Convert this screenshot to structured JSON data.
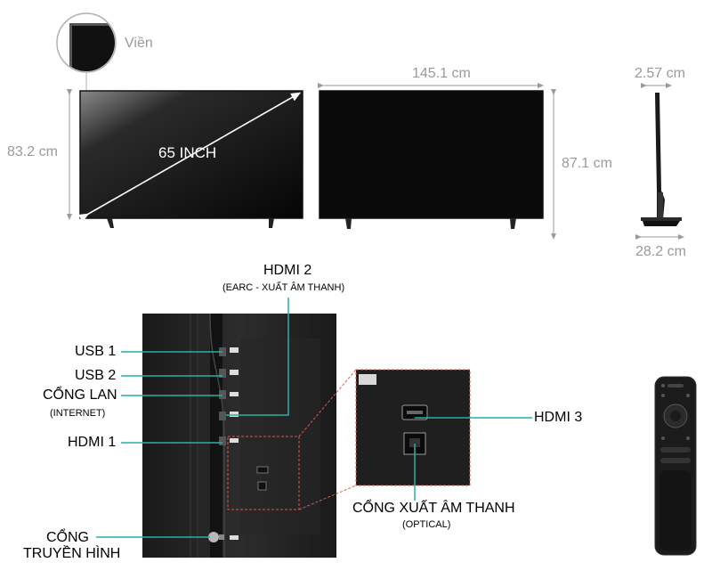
{
  "dimensions": {
    "bezel_label": "Viền",
    "screen_size": "65 INCH",
    "width": "145.1 cm",
    "height_no_stand": "83.2 cm",
    "height_with_stand": "87.1 cm",
    "depth": "2.57 cm",
    "stand_depth": "28.2 cm"
  },
  "ports": {
    "hdmi2": "HDMI 2",
    "hdmi2_sub": "(EARC - XUẤT ÂM THANH)",
    "usb1": "USB 1",
    "usb2": "USB 2",
    "lan": "CỔNG LAN",
    "lan_sub": "(INTERNET)",
    "hdmi1": "HDMI 1",
    "antenna_line1": "CỔNG",
    "antenna_line2": "TRUYỀN HÌNH",
    "hdmi3": "HDMI 3",
    "optical": "CỔNG XUẤT ÂM THANH",
    "optical_sub": "(OPTICAL)"
  },
  "colors": {
    "accent_line": "#27b0a5",
    "dimension_line": "#9a9a9a",
    "zoom_dash": "#e0564f"
  },
  "icons": [
    "tv-front-icon",
    "tv-back-icon",
    "tv-side-icon",
    "remote-icon",
    "bezel-zoom-icon"
  ]
}
